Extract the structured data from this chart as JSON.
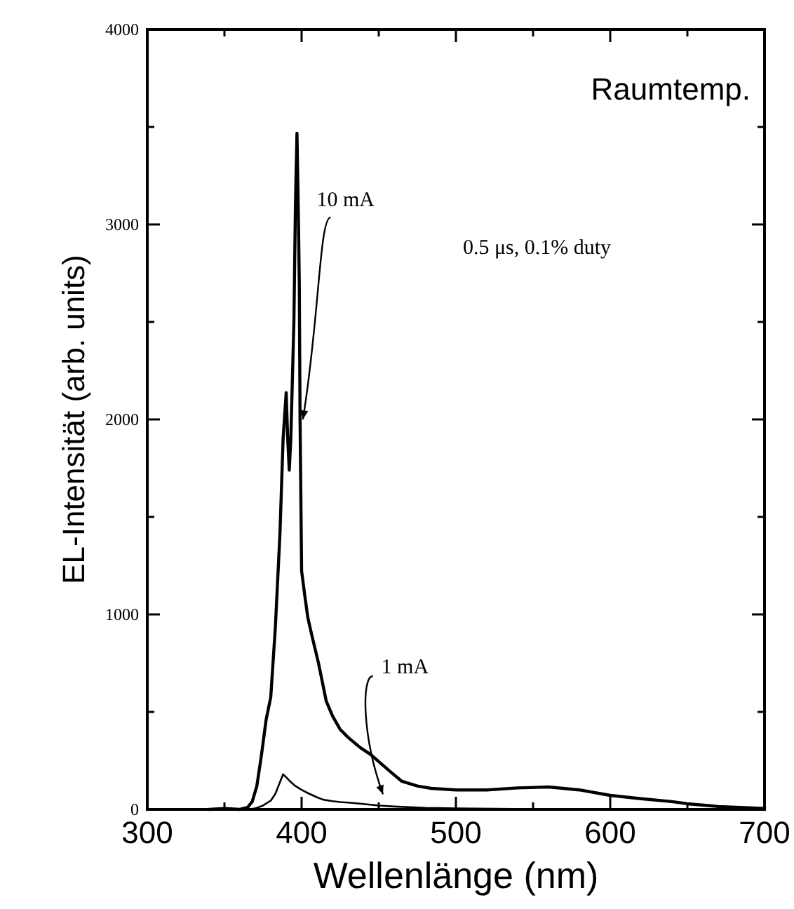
{
  "chart_data": {
    "type": "line",
    "xlabel": "Wellenlänge (nm)",
    "ylabel": "EL-Intensität (arb. units)",
    "annotations": [
      "Raumtemp.",
      "0.5 μs,  0.1% duty"
    ],
    "xlim": [
      300,
      700
    ],
    "ylim": [
      0,
      4000
    ],
    "xticks": [
      300,
      {
        "value": 350,
        "label": null
      },
      400,
      {
        "value": 450,
        "label": null
      },
      500,
      {
        "value": 550,
        "label": null
      },
      600,
      {
        "value": 650,
        "label": null
      },
      700
    ],
    "yticks": [
      0,
      {
        "value": 500,
        "label": null
      },
      1000,
      {
        "value": 1500,
        "label": null
      },
      2000,
      {
        "value": 2500,
        "label": null
      },
      3000,
      {
        "value": 3500,
        "label": null
      },
      4000
    ],
    "grid": false,
    "legend": false,
    "marker": "none",
    "line_style": "solid",
    "series": [
      {
        "name": "10 mA",
        "color": "#000000",
        "x": [
          340,
          350,
          360,
          365,
          368,
          371,
          374,
          377,
          380,
          383,
          386,
          388,
          390,
          391,
          392,
          393,
          395,
          396,
          397,
          398,
          398.5,
          399,
          400,
          402,
          404,
          407,
          411,
          416,
          420,
          425,
          430,
          438,
          445,
          450,
          458,
          465,
          475,
          484,
          500,
          520,
          540,
          560,
          580,
          600,
          620,
          640,
          650,
          670,
          690,
          700
        ],
        "values": [
          0,
          5,
          0,
          10,
          40,
          120,
          280,
          460,
          575,
          935,
          1420,
          1900,
          2137,
          1900,
          1740,
          1900,
          2500,
          3100,
          3468,
          3000,
          2700,
          2000,
          1223,
          1100,
          985,
          880,
          748,
          554,
          480,
          410,
          370,
          317,
          280,
          245,
          190,
          144,
          120,
          108,
          100,
          100,
          110,
          115,
          100,
          72,
          55,
          40,
          29,
          15,
          8,
          5
        ]
      },
      {
        "name": "1 mA",
        "color": "#000000",
        "x": [
          365,
          370,
          375,
          380,
          383,
          386,
          388,
          390,
          393,
          396,
          400,
          405,
          410,
          414,
          420,
          425,
          430,
          440,
          450,
          460,
          480,
          500,
          550,
          600,
          650,
          700
        ],
        "values": [
          0,
          5,
          20,
          45,
          80,
          140,
          180,
          165,
          140,
          120,
          100,
          80,
          62,
          50,
          42,
          38,
          35,
          28,
          20,
          15,
          8,
          5,
          2,
          1,
          0,
          0
        ]
      }
    ]
  }
}
